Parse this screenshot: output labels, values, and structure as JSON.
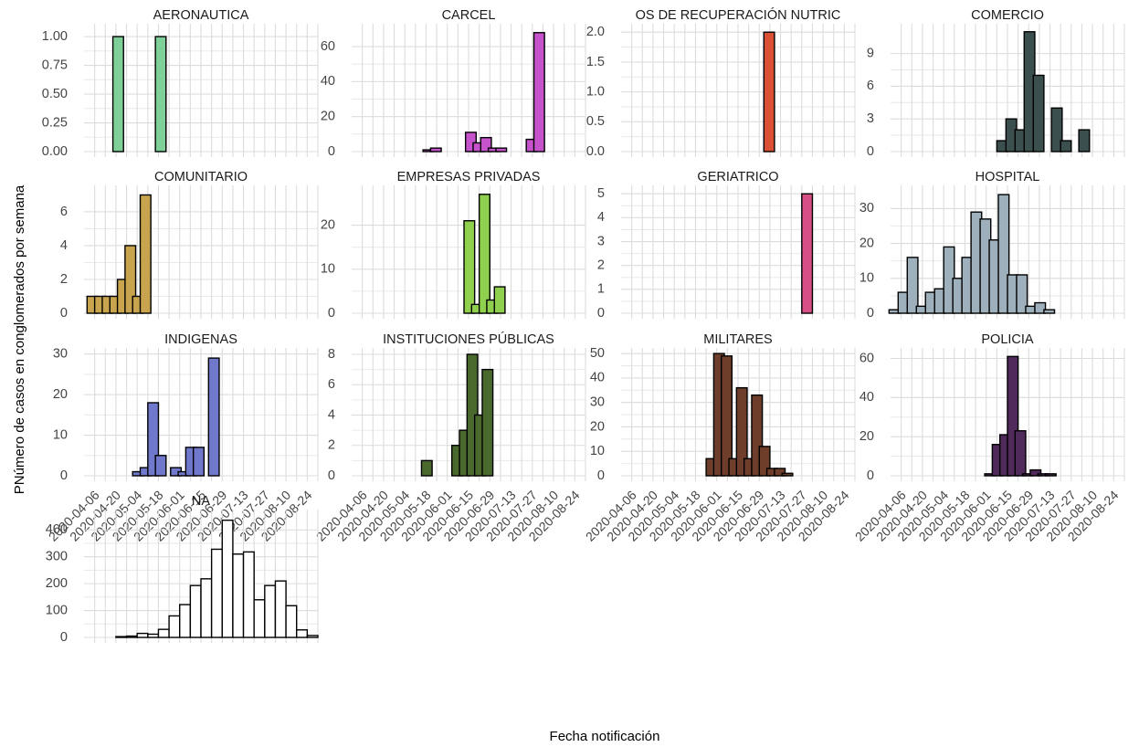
{
  "chart_data": {
    "type": "bar",
    "subtype": "faceted-histogram",
    "xlabel": "Fecha notificación",
    "ylabel": "PNúmero de casos en conglomerados por semana",
    "x_ticks": [
      "2020-04-06",
      "2020-04-20",
      "2020-05-04",
      "2020-05-18",
      "2020-06-01",
      "2020-06-15",
      "2020-06-29",
      "2020-07-13",
      "2020-07-27",
      "2020-08-10",
      "2020-08-24"
    ],
    "x_range": [
      "2020-03-30",
      "2020-08-31"
    ],
    "bin_width_days": 7,
    "grid": true,
    "legend": "none",
    "panels": [
      {
        "title": "AERONAUTICA",
        "color": "#7fcf98",
        "y_ticks": [
          "0.00",
          "0.25",
          "0.50",
          "0.75",
          "1.00"
        ],
        "ylim": [
          0,
          1.08
        ],
        "bars": [
          {
            "start": "2020-04-18",
            "value": 1
          },
          {
            "start": "2020-05-16",
            "value": 1
          }
        ]
      },
      {
        "title": "CARCEL",
        "color": "#c653cc",
        "y_ticks": [
          "0",
          "20",
          "40",
          "60"
        ],
        "ylim": [
          0,
          71
        ],
        "bars": [
          {
            "start": "2020-05-16",
            "value": 1
          },
          {
            "start": "2020-05-21",
            "value": 2
          },
          {
            "start": "2020-06-13",
            "value": 11
          },
          {
            "start": "2020-06-18",
            "value": 5
          },
          {
            "start": "2020-06-23",
            "value": 8
          },
          {
            "start": "2020-06-28",
            "value": 2
          },
          {
            "start": "2020-07-03",
            "value": 2
          },
          {
            "start": "2020-07-23",
            "value": 7
          },
          {
            "start": "2020-07-28",
            "value": 68
          }
        ]
      },
      {
        "title": "OS DE RECUPERACIÓN NUTRIC",
        "color": "#d95035",
        "y_ticks": [
          "0.0",
          "0.5",
          "1.0",
          "1.5",
          "2.0"
        ],
        "ylim": [
          0,
          2.08
        ],
        "bars": [
          {
            "start": "2020-07-02",
            "value": 2
          }
        ]
      },
      {
        "title": "COMERCIO",
        "color": "#3c4f4f",
        "y_ticks": [
          "0",
          "3",
          "6",
          "9"
        ],
        "ylim": [
          0,
          11.4
        ],
        "bars": [
          {
            "start": "2020-06-08",
            "value": 1
          },
          {
            "start": "2020-06-14",
            "value": 3
          },
          {
            "start": "2020-06-20",
            "value": 2
          },
          {
            "start": "2020-06-26",
            "value": 11
          },
          {
            "start": "2020-07-02",
            "value": 7
          },
          {
            "start": "2020-07-14",
            "value": 4
          },
          {
            "start": "2020-07-20",
            "value": 1
          },
          {
            "start": "2020-08-01",
            "value": 2
          }
        ]
      },
      {
        "title": "COMUNITARIO",
        "color": "#c9a44f",
        "y_ticks": [
          "0",
          "2",
          "4",
          "6"
        ],
        "ylim": [
          0,
          7.35
        ],
        "bars": [
          {
            "start": "2020-04-01",
            "value": 1
          },
          {
            "start": "2020-04-06",
            "value": 1
          },
          {
            "start": "2020-04-11",
            "value": 1
          },
          {
            "start": "2020-04-16",
            "value": 1
          },
          {
            "start": "2020-04-21",
            "value": 2
          },
          {
            "start": "2020-04-26",
            "value": 4
          },
          {
            "start": "2020-05-01",
            "value": 1
          },
          {
            "start": "2020-05-06",
            "value": 7
          }
        ]
      },
      {
        "title": "EMPRESAS PRIVADAS",
        "color": "#8fd14f",
        "y_ticks": [
          "0",
          "10",
          "20"
        ],
        "ylim": [
          0,
          28.2
        ],
        "bars": [
          {
            "start": "2020-06-12",
            "value": 21
          },
          {
            "start": "2020-06-17",
            "value": 2
          },
          {
            "start": "2020-06-22",
            "value": 27
          },
          {
            "start": "2020-06-27",
            "value": 3
          },
          {
            "start": "2020-07-02",
            "value": 6
          }
        ]
      },
      {
        "title": "GERIATRICO",
        "color": "#d64f85",
        "y_ticks": [
          "0",
          "1",
          "2",
          "3",
          "4",
          "5"
        ],
        "ylim": [
          0,
          5.2
        ],
        "bars": [
          {
            "start": "2020-07-27",
            "value": 5
          }
        ]
      },
      {
        "title": "HOSPITAL",
        "color": "#9db0bc",
        "y_ticks": [
          "0",
          "10",
          "20",
          "30"
        ],
        "ylim": [
          0,
          35.6
        ],
        "bars": [
          {
            "start": "2020-03-29",
            "value": 1
          },
          {
            "start": "2020-04-04",
            "value": 6
          },
          {
            "start": "2020-04-10",
            "value": 16
          },
          {
            "start": "2020-04-16",
            "value": 2
          },
          {
            "start": "2020-04-22",
            "value": 6
          },
          {
            "start": "2020-04-28",
            "value": 7
          },
          {
            "start": "2020-05-04",
            "value": 19
          },
          {
            "start": "2020-05-10",
            "value": 10
          },
          {
            "start": "2020-05-16",
            "value": 16
          },
          {
            "start": "2020-05-22",
            "value": 29
          },
          {
            "start": "2020-05-28",
            "value": 27
          },
          {
            "start": "2020-06-03",
            "value": 21
          },
          {
            "start": "2020-06-09",
            "value": 34
          },
          {
            "start": "2020-06-15",
            "value": 11
          },
          {
            "start": "2020-06-21",
            "value": 11
          },
          {
            "start": "2020-06-27",
            "value": 2
          },
          {
            "start": "2020-07-03",
            "value": 3
          },
          {
            "start": "2020-07-09",
            "value": 1
          }
        ]
      },
      {
        "title": "INDIGENAS",
        "color": "#7078cc",
        "y_ticks": [
          "0",
          "10",
          "20",
          "30"
        ],
        "ylim": [
          0,
          30.6
        ],
        "bars": [
          {
            "start": "2020-05-01",
            "value": 1
          },
          {
            "start": "2020-05-06",
            "value": 2
          },
          {
            "start": "2020-05-11",
            "value": 18
          },
          {
            "start": "2020-05-16",
            "value": 5
          },
          {
            "start": "2020-05-26",
            "value": 2
          },
          {
            "start": "2020-05-31",
            "value": 1
          },
          {
            "start": "2020-06-05",
            "value": 7
          },
          {
            "start": "2020-06-10",
            "value": 7
          },
          {
            "start": "2020-06-20",
            "value": 29
          }
        ]
      },
      {
        "title": "INSTITUCIONES PÚBLICAS",
        "color": "#4a6a2d",
        "y_ticks": [
          "0",
          "2",
          "4",
          "6",
          "8"
        ],
        "ylim": [
          0,
          8.18
        ],
        "bars": [
          {
            "start": "2020-05-15",
            "value": 1
          },
          {
            "start": "2020-06-04",
            "value": 2
          },
          {
            "start": "2020-06-09",
            "value": 3
          },
          {
            "start": "2020-06-14",
            "value": 8
          },
          {
            "start": "2020-06-19",
            "value": 4
          },
          {
            "start": "2020-06-24",
            "value": 7
          }
        ]
      },
      {
        "title": "MILITARES",
        "color": "#6e3e2b",
        "y_ticks": [
          "0",
          "10",
          "20",
          "30",
          "40",
          "50"
        ],
        "ylim": [
          0,
          50.8
        ],
        "bars": [
          {
            "start": "2020-05-25",
            "value": 7
          },
          {
            "start": "2020-05-30",
            "value": 50
          },
          {
            "start": "2020-06-04",
            "value": 49
          },
          {
            "start": "2020-06-09",
            "value": 7
          },
          {
            "start": "2020-06-14",
            "value": 36
          },
          {
            "start": "2020-06-19",
            "value": 7
          },
          {
            "start": "2020-06-24",
            "value": 33
          },
          {
            "start": "2020-06-29",
            "value": 12
          },
          {
            "start": "2020-07-04",
            "value": 3
          },
          {
            "start": "2020-07-09",
            "value": 3
          },
          {
            "start": "2020-07-14",
            "value": 1
          }
        ]
      },
      {
        "title": "POLICIA",
        "color": "#4f2a5a",
        "y_ticks": [
          "0",
          "20",
          "40",
          "60"
        ],
        "ylim": [
          0,
          63.5
        ],
        "bars": [
          {
            "start": "2020-05-31",
            "value": 1
          },
          {
            "start": "2020-06-05",
            "value": 16
          },
          {
            "start": "2020-06-10",
            "value": 21
          },
          {
            "start": "2020-06-15",
            "value": 61
          },
          {
            "start": "2020-06-20",
            "value": 23
          },
          {
            "start": "2020-06-25",
            "value": 1
          },
          {
            "start": "2020-06-30",
            "value": 3
          },
          {
            "start": "2020-07-05",
            "value": 1
          },
          {
            "start": "2020-07-10",
            "value": 1
          }
        ]
      },
      {
        "title": "NA",
        "color": "#ffffff",
        "y_ticks": [
          "0",
          "100",
          "200",
          "300",
          "400"
        ],
        "ylim": [
          0,
          462
        ],
        "bars": [
          {
            "start": "2020-04-20",
            "value": 3
          },
          {
            "start": "2020-04-27",
            "value": 5
          },
          {
            "start": "2020-05-04",
            "value": 15
          },
          {
            "start": "2020-05-11",
            "value": 12
          },
          {
            "start": "2020-05-18",
            "value": 30
          },
          {
            "start": "2020-05-25",
            "value": 80
          },
          {
            "start": "2020-06-01",
            "value": 122
          },
          {
            "start": "2020-06-08",
            "value": 193
          },
          {
            "start": "2020-06-15",
            "value": 218
          },
          {
            "start": "2020-06-22",
            "value": 328
          },
          {
            "start": "2020-06-29",
            "value": 436
          },
          {
            "start": "2020-07-06",
            "value": 310
          },
          {
            "start": "2020-07-13",
            "value": 318
          },
          {
            "start": "2020-07-20",
            "value": 140
          },
          {
            "start": "2020-07-27",
            "value": 193
          },
          {
            "start": "2020-08-03",
            "value": 210
          },
          {
            "start": "2020-08-10",
            "value": 118
          },
          {
            "start": "2020-08-17",
            "value": 28
          },
          {
            "start": "2020-08-24",
            "value": 7
          }
        ]
      }
    ]
  }
}
